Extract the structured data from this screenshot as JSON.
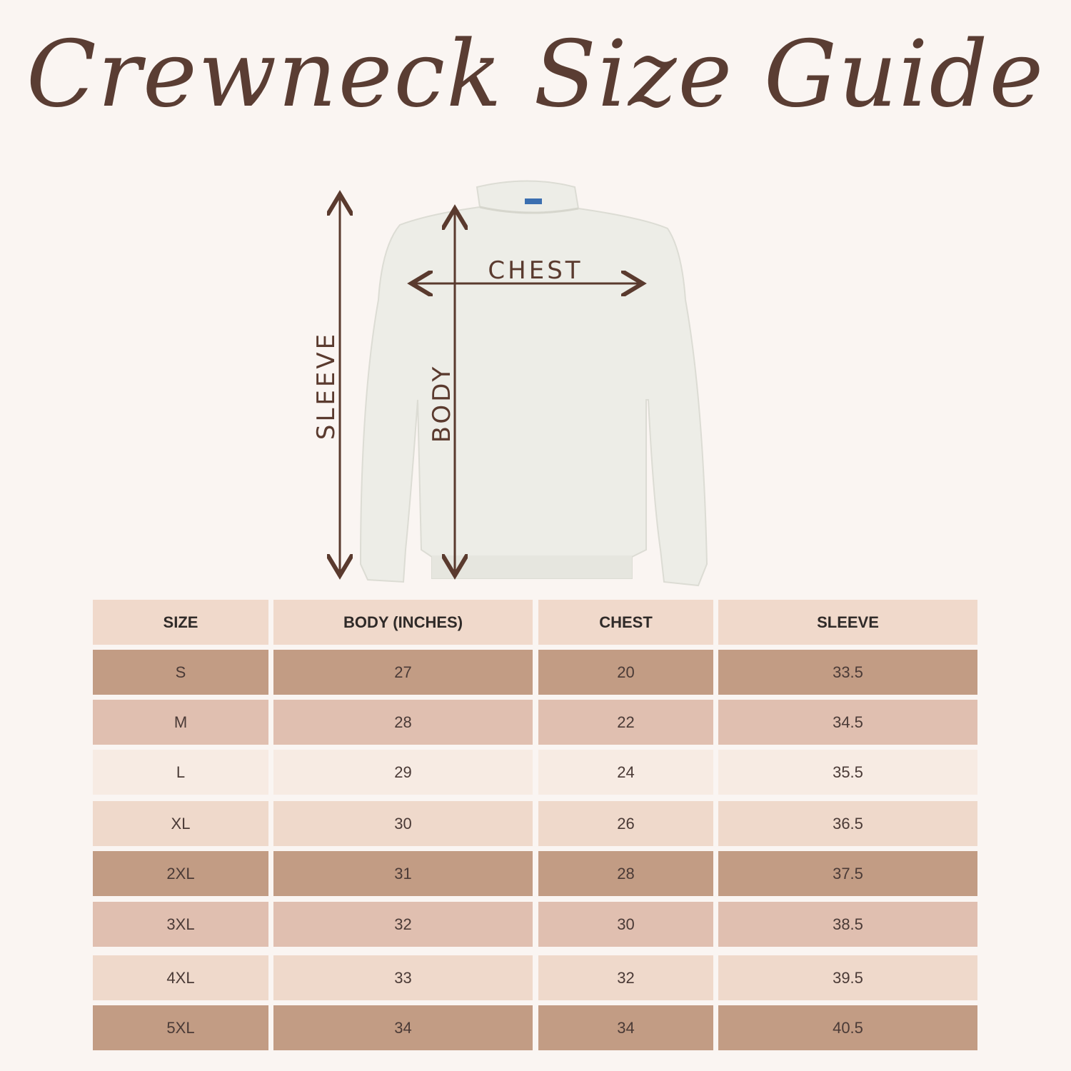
{
  "title": "Crewneck Size Guide",
  "diagram": {
    "labels": {
      "chest": "CHEST",
      "body": "BODY",
      "sleeve": "SLEEVE"
    },
    "garment_color": "#ededE7",
    "arrow_color": "#5a3a2e"
  },
  "table": {
    "headers": [
      "SIZE",
      "BODY (INCHES)",
      "CHEST",
      "SLEEVE"
    ],
    "header_color": "#f0d9cb",
    "rows": [
      {
        "cells": [
          "S",
          "27",
          "20",
          "33.5"
        ],
        "color": "#c29c84"
      },
      {
        "cells": [
          "M",
          "28",
          "22",
          "34.5"
        ],
        "color": "#e0bfb0"
      },
      {
        "cells": [
          "L",
          "29",
          "24",
          "35.5"
        ],
        "color": "#f7ebe3"
      },
      {
        "cells": [
          "XL",
          "30",
          "26",
          "36.5"
        ],
        "color": "#efd9cb"
      },
      {
        "cells": [
          "2XL",
          "31",
          "28",
          "37.5"
        ],
        "color": "#c29c84"
      },
      {
        "cells": [
          "3XL",
          "32",
          "30",
          "38.5"
        ],
        "color": "#e0bfb0"
      },
      {
        "cells": [
          "4XL",
          "33",
          "32",
          "39.5"
        ],
        "color": "#efd9cb"
      },
      {
        "cells": [
          "5XL",
          "34",
          "34",
          "40.5"
        ],
        "color": "#c29c84"
      }
    ]
  }
}
